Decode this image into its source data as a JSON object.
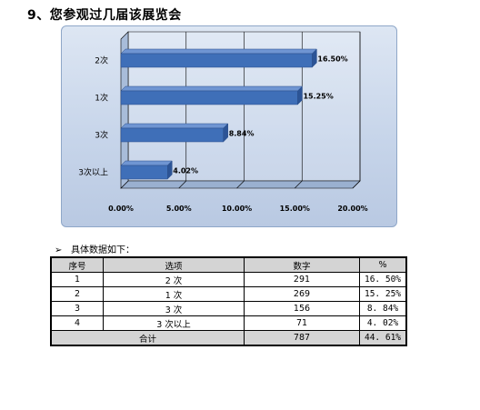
{
  "page": {
    "title": "9、您参观过几届该展览会",
    "note": "具体数据如下："
  },
  "chart_data": {
    "type": "bar",
    "orientation": "horizontal",
    "categories": [
      "2次",
      "1次",
      "3次",
      "3次以上"
    ],
    "values": [
      16.5,
      15.25,
      8.84,
      4.02
    ],
    "value_labels": [
      "16.50%",
      "15.25%",
      "8.84%",
      "4.02%"
    ],
    "xlim": [
      0,
      20
    ],
    "xticks": [
      "0.00%",
      "5.00%",
      "10.00%",
      "15.00%",
      "20.00%"
    ],
    "grid": true,
    "style": "3d",
    "bar_color": "#3f6fb8"
  },
  "table": {
    "headers": [
      "序号",
      "选项",
      "数字",
      "%"
    ],
    "rows": [
      [
        "1",
        "2 次",
        "291",
        "16. 50%"
      ],
      [
        "2",
        "1 次",
        "269",
        "15. 25%"
      ],
      [
        "3",
        "3 次",
        "156",
        "8. 84%"
      ],
      [
        "4",
        "3 次以上",
        "71",
        "4. 02%"
      ]
    ],
    "total": {
      "label": "合计",
      "count": "787",
      "percent": "44. 61%"
    }
  }
}
